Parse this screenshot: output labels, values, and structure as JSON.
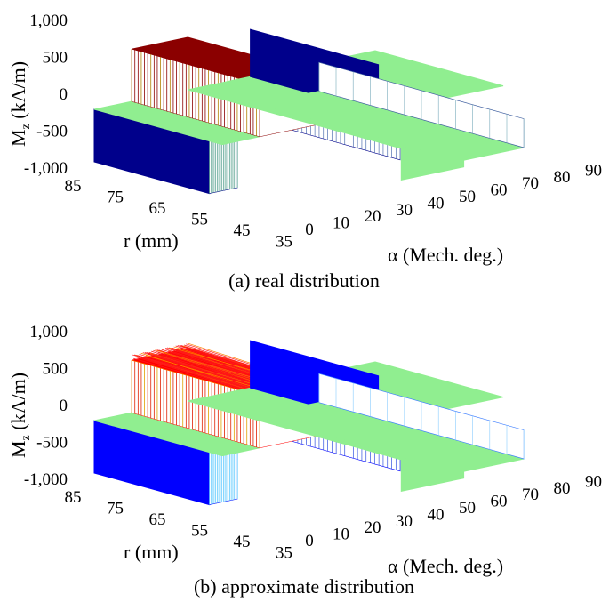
{
  "chart_data": [
    {
      "type": "surface",
      "caption": "(a) real distribution",
      "zlabel": "M",
      "zlabel_sub": "z",
      "zlabel_unit": "(kA/m)",
      "ylabel": "r (mm)",
      "xlabel": "α (Mech. deg.)",
      "z_ticks": [
        "1,000",
        "500",
        "0",
        "-500",
        "-1,000"
      ],
      "r_ticks": [
        "85",
        "75",
        "65",
        "55",
        "45",
        "35"
      ],
      "alpha_ticks": [
        "0",
        "10",
        "20",
        "30",
        "40",
        "50",
        "60",
        "70",
        "80",
        "90"
      ],
      "zlim": [
        -1000,
        1000
      ],
      "rlim": [
        35,
        85
      ],
      "alphalim": [
        0,
        90
      ],
      "magnet_value_kAm": 1000,
      "colors": {
        "positive": "#8b0000",
        "negative": "#00008b",
        "zero": "#90ee90"
      }
    },
    {
      "type": "surface",
      "caption": "(b) approximate distribution",
      "zlabel": "M",
      "zlabel_sub": "z",
      "zlabel_unit": "(kA/m)",
      "ylabel": "r (mm)",
      "xlabel": "α (Mech. deg.)",
      "z_ticks": [
        "1,000",
        "500",
        "0",
        "-500",
        "-1,000"
      ],
      "r_ticks": [
        "85",
        "75",
        "65",
        "55",
        "45",
        "35"
      ],
      "alpha_ticks": [
        "0",
        "10",
        "20",
        "30",
        "40",
        "50",
        "60",
        "70",
        "80",
        "90"
      ],
      "zlim": [
        -1000,
        1000
      ],
      "rlim": [
        35,
        85
      ],
      "alphalim": [
        0,
        90
      ],
      "magnet_value_kAm": 1000,
      "colors": {
        "positive": "#ff0000",
        "negative": "#0000ff",
        "zero": "#90ee90"
      }
    }
  ]
}
